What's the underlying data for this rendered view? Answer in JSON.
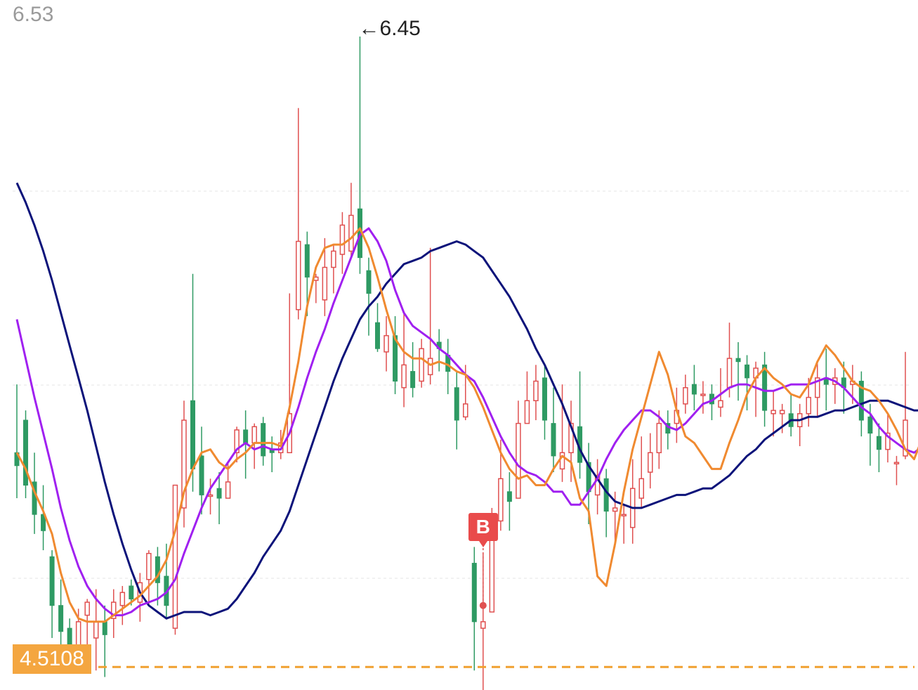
{
  "chart_data": {
    "type": "candlestick",
    "y_top_label": "6.53",
    "high_marker": {
      "label": "←6.45",
      "value": 6.45
    },
    "reference_line": {
      "label": "4.5108",
      "value": 4.5108,
      "color": "#f0a030"
    },
    "signal": {
      "label": "B",
      "index": 53,
      "price": 4.7
    },
    "colors": {
      "up": "#e05050",
      "down": "#2e9a63",
      "ma_fast": "#f08a30",
      "ma_mid": "#a020f0",
      "ma_slow": "#0c137a"
    },
    "ylim": [
      4.44,
      6.53
    ],
    "candles": [
      [
        5.17,
        5.13,
        5.38,
        5.03
      ],
      [
        5.27,
        5.07,
        5.3,
        5.03
      ],
      [
        5.08,
        4.98,
        5.17,
        4.92
      ],
      [
        4.98,
        4.93,
        5.07,
        4.87
      ],
      [
        4.85,
        4.7,
        4.87,
        4.6
      ],
      [
        4.7,
        4.62,
        4.78,
        4.51
      ],
      [
        4.63,
        4.58,
        4.66,
        4.51
      ],
      [
        4.56,
        4.65,
        4.69,
        4.54
      ],
      [
        4.67,
        4.71,
        4.72,
        4.56
      ],
      [
        4.6,
        4.65,
        4.75,
        4.5
      ],
      [
        4.65,
        4.61,
        4.7,
        4.48
      ],
      [
        4.66,
        4.71,
        4.75,
        4.6
      ],
      [
        4.7,
        4.74,
        4.76,
        4.64
      ],
      [
        4.76,
        4.72,
        4.78,
        4.7
      ],
      [
        4.71,
        4.77,
        4.8,
        4.65
      ],
      [
        4.78,
        4.86,
        4.87,
        4.7
      ],
      [
        4.85,
        4.77,
        4.88,
        4.7
      ],
      [
        4.79,
        4.7,
        4.89,
        4.66
      ],
      [
        4.63,
        5.07,
        5.07,
        4.61
      ],
      [
        5.0,
        5.27,
        5.33,
        4.94
      ],
      [
        5.33,
        5.12,
        5.72,
        5.05
      ],
      [
        5.16,
        5.04,
        5.25,
        4.98
      ],
      [
        5.04,
        5.04,
        5.09,
        4.98
      ],
      [
        5.06,
        5.03,
        5.11,
        4.95
      ],
      [
        5.03,
        5.08,
        5.14,
        5.03
      ],
      [
        5.17,
        5.24,
        5.25,
        5.14
      ],
      [
        5.24,
        5.2,
        5.3,
        5.09
      ],
      [
        5.2,
        5.25,
        5.26,
        5.12
      ],
      [
        5.26,
        5.16,
        5.28,
        5.13
      ],
      [
        5.18,
        5.17,
        5.22,
        5.11
      ],
      [
        5.17,
        5.2,
        5.24,
        5.15
      ],
      [
        5.17,
        5.29,
        5.66,
        5.18
      ],
      [
        5.61,
        5.82,
        6.23,
        5.58
      ],
      [
        5.81,
        5.71,
        5.85,
        5.59
      ],
      [
        5.7,
        5.71,
        5.72,
        5.63
      ],
      [
        5.64,
        5.74,
        5.83,
        5.59
      ],
      [
        5.74,
        5.79,
        5.81,
        5.66
      ],
      [
        5.78,
        5.87,
        5.91,
        5.72
      ],
      [
        5.79,
        5.9,
        6.0,
        5.77
      ],
      [
        5.92,
        5.77,
        6.45,
        5.72
      ],
      [
        5.73,
        5.66,
        5.77,
        5.53
      ],
      [
        5.57,
        5.49,
        5.63,
        5.48
      ],
      [
        5.48,
        5.53,
        5.59,
        5.42
      ],
      [
        5.53,
        5.39,
        5.59,
        5.35
      ],
      [
        5.37,
        5.44,
        5.6,
        5.31
      ],
      [
        5.42,
        5.37,
        5.51,
        5.34
      ],
      [
        5.39,
        5.49,
        5.52,
        5.37
      ],
      [
        5.41,
        5.46,
        5.8,
        5.38
      ],
      [
        5.51,
        5.49,
        5.55,
        5.42
      ],
      [
        5.47,
        5.42,
        5.52,
        5.35
      ],
      [
        5.37,
        5.27,
        5.42,
        5.18
      ],
      [
        5.28,
        5.32,
        5.44,
        5.27
      ],
      [
        4.83,
        4.65,
        4.88,
        4.5
      ],
      [
        4.63,
        4.65,
        4.86,
        4.44
      ],
      [
        4.68,
        4.94,
        5.0,
        4.7
      ],
      [
        4.96,
        5.09,
        5.21,
        4.93
      ],
      [
        5.05,
        5.02,
        5.11,
        4.93
      ],
      [
        5.03,
        5.26,
        5.33,
        5.04
      ],
      [
        5.26,
        5.33,
        5.42,
        5.26
      ],
      [
        5.33,
        5.39,
        5.44,
        5.27
      ],
      [
        5.4,
        5.27,
        5.44,
        5.21
      ],
      [
        5.26,
        5.16,
        5.37,
        5.11
      ],
      [
        5.12,
        5.17,
        5.38,
        5.08
      ],
      [
        5.17,
        5.26,
        5.33,
        5.08
      ],
      [
        5.25,
        5.14,
        5.42,
        5.09
      ],
      [
        5.14,
        5.05,
        5.2,
        4.95
      ],
      [
        5.04,
        5.1,
        5.15,
        4.98
      ],
      [
        5.09,
        4.99,
        5.12,
        4.91
      ],
      [
        4.99,
        5.0,
        5.05,
        4.88
      ],
      [
        4.98,
        4.98,
        5.01,
        4.89
      ],
      [
        4.94,
        5.06,
        5.15,
        4.89
      ],
      [
        5.03,
        5.09,
        5.22,
        5.0
      ],
      [
        5.11,
        5.17,
        5.23,
        5.06
      ],
      [
        5.17,
        5.26,
        5.3,
        5.12
      ],
      [
        5.26,
        5.23,
        5.3,
        5.18
      ],
      [
        5.26,
        5.3,
        5.37,
        5.2
      ],
      [
        5.32,
        5.37,
        5.41,
        5.29
      ],
      [
        5.38,
        5.35,
        5.44,
        5.3
      ],
      [
        5.35,
        5.35,
        5.39,
        5.29
      ],
      [
        5.35,
        5.32,
        5.38,
        5.27
      ],
      [
        5.31,
        5.33,
        5.43,
        5.28
      ],
      [
        5.37,
        5.46,
        5.57,
        5.34
      ],
      [
        5.46,
        5.45,
        5.51,
        5.33
      ],
      [
        5.44,
        5.4,
        5.47,
        5.3
      ],
      [
        5.4,
        5.43,
        5.45,
        5.28
      ],
      [
        5.44,
        5.3,
        5.48,
        5.25
      ],
      [
        5.29,
        5.3,
        5.36,
        5.22
      ],
      [
        5.29,
        5.3,
        5.32,
        5.23
      ],
      [
        5.29,
        5.25,
        5.35,
        5.22
      ],
      [
        5.25,
        5.29,
        5.32,
        5.19
      ],
      [
        5.29,
        5.34,
        5.4,
        5.25
      ],
      [
        5.34,
        5.4,
        5.45,
        5.28
      ],
      [
        5.4,
        5.38,
        5.49,
        5.3
      ],
      [
        5.38,
        5.4,
        5.43,
        5.32
      ],
      [
        5.4,
        5.37,
        5.45,
        5.29
      ],
      [
        5.38,
        5.39,
        5.44,
        5.32
      ],
      [
        5.39,
        5.27,
        5.42,
        5.22
      ],
      [
        5.28,
        5.23,
        5.32,
        5.13
      ],
      [
        5.22,
        5.18,
        5.26,
        5.11
      ],
      [
        5.18,
        5.23,
        5.29,
        5.14
      ],
      [
        5.14,
        5.14,
        5.16,
        5.07
      ],
      [
        5.16,
        5.27,
        5.48,
        5.15
      ]
    ],
    "ma_fast": [
      5.17,
      5.12,
      5.05,
      4.99,
      4.92,
      4.8,
      4.71,
      4.66,
      4.65,
      4.65,
      4.65,
      4.67,
      4.69,
      4.71,
      4.73,
      4.76,
      4.79,
      4.84,
      4.93,
      5.05,
      5.12,
      5.17,
      5.18,
      5.14,
      5.12,
      5.15,
      5.17,
      5.2,
      5.2,
      5.2,
      5.19,
      5.31,
      5.45,
      5.62,
      5.74,
      5.8,
      5.81,
      5.81,
      5.83,
      5.86,
      5.8,
      5.71,
      5.61,
      5.52,
      5.48,
      5.46,
      5.46,
      5.44,
      5.45,
      5.44,
      5.42,
      5.41,
      5.37,
      5.31,
      5.24,
      5.17,
      5.12,
      5.09,
      5.1,
      5.07,
      5.07,
      5.12,
      5.16,
      5.14,
      5.03,
      4.99,
      4.79,
      4.76,
      4.89,
      5.05,
      5.18,
      5.28,
      5.38,
      5.48,
      5.41,
      5.3,
      5.22,
      5.2,
      5.16,
      5.12,
      5.12,
      5.2,
      5.27,
      5.35,
      5.4,
      5.43,
      5.4,
      5.38,
      5.35,
      5.34,
      5.38,
      5.45,
      5.5,
      5.47,
      5.43,
      5.39,
      5.37,
      5.36,
      5.33,
      5.29,
      5.24,
      5.18,
      5.15,
      5.22
    ],
    "ma_mid": [
      5.58,
      5.46,
      5.34,
      5.23,
      5.12,
      5.0,
      4.9,
      4.82,
      4.76,
      4.72,
      4.69,
      4.67,
      4.67,
      4.68,
      4.7,
      4.71,
      4.72,
      4.74,
      4.78,
      4.86,
      4.93,
      5.0,
      5.06,
      5.1,
      5.14,
      5.18,
      5.2,
      5.18,
      5.19,
      5.18,
      5.18,
      5.23,
      5.31,
      5.4,
      5.48,
      5.55,
      5.63,
      5.7,
      5.77,
      5.84,
      5.86,
      5.82,
      5.76,
      5.67,
      5.6,
      5.56,
      5.54,
      5.52,
      5.49,
      5.47,
      5.44,
      5.41,
      5.39,
      5.34,
      5.28,
      5.22,
      5.17,
      5.13,
      5.11,
      5.1,
      5.08,
      5.05,
      5.05,
      5.01,
      5.01,
      5.05,
      5.09,
      5.15,
      5.2,
      5.24,
      5.27,
      5.3,
      5.3,
      5.28,
      5.25,
      5.24,
      5.26,
      5.29,
      5.32,
      5.33,
      5.35,
      5.37,
      5.38,
      5.38,
      5.37,
      5.36,
      5.36,
      5.37,
      5.38,
      5.38,
      5.38,
      5.39,
      5.4,
      5.39,
      5.37,
      5.34,
      5.31,
      5.29,
      5.25,
      5.22,
      5.2,
      5.18,
      5.17,
      5.19
    ],
    "ma_slow": [
      6.0,
      5.94,
      5.87,
      5.79,
      5.7,
      5.6,
      5.5,
      5.4,
      5.3,
      5.19,
      5.08,
      4.98,
      4.89,
      4.81,
      4.74,
      4.7,
      4.68,
      4.66,
      4.67,
      4.68,
      4.68,
      4.68,
      4.67,
      4.68,
      4.69,
      4.72,
      4.76,
      4.8,
      4.85,
      4.89,
      4.93,
      4.99,
      5.07,
      5.15,
      5.23,
      5.31,
      5.39,
      5.46,
      5.52,
      5.58,
      5.62,
      5.65,
      5.69,
      5.72,
      5.75,
      5.76,
      5.77,
      5.79,
      5.8,
      5.81,
      5.82,
      5.81,
      5.79,
      5.77,
      5.73,
      5.69,
      5.65,
      5.6,
      5.55,
      5.49,
      5.44,
      5.38,
      5.32,
      5.25,
      5.18,
      5.13,
      5.09,
      5.05,
      5.02,
      5.01,
      5.0,
      5.0,
      5.01,
      5.02,
      5.03,
      5.04,
      5.04,
      5.05,
      5.06,
      5.06,
      5.08,
      5.1,
      5.13,
      5.16,
      5.18,
      5.21,
      5.23,
      5.25,
      5.27,
      5.27,
      5.28,
      5.28,
      5.29,
      5.3,
      5.3,
      5.31,
      5.32,
      5.33,
      5.33,
      5.33,
      5.32,
      5.31,
      5.3,
      5.3
    ]
  }
}
